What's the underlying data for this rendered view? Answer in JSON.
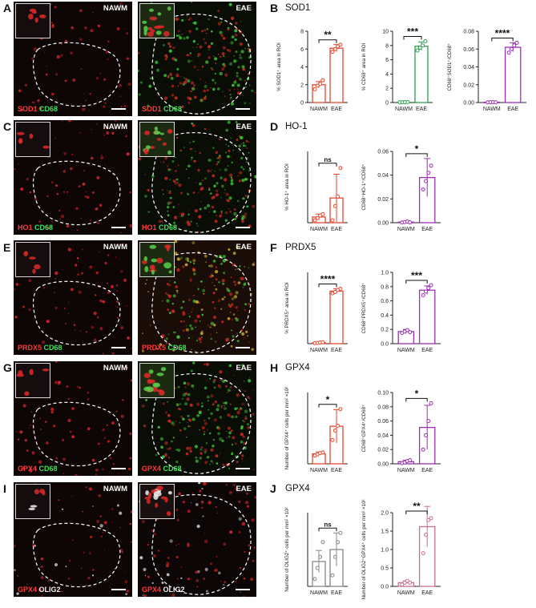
{
  "letters": [
    "A",
    "B",
    "C",
    "D",
    "E",
    "F",
    "G",
    "H",
    "I",
    "J"
  ],
  "section_titles": {
    "B": "SOD1",
    "D": "HO-1",
    "F": "PRDX5",
    "H": "GPX4",
    "J": "GPX4"
  },
  "micrographs": {
    "A": {
      "left_tag": "NAWM",
      "right_tag": "EAE",
      "red": "SOD1",
      "second": "CD68",
      "second_color": "#3fe05a"
    },
    "C": {
      "left_tag": "NAWM",
      "right_tag": "EAE",
      "red": "HO1",
      "second": "CD68",
      "second_color": "#3fe05a"
    },
    "E": {
      "left_tag": "NAWM",
      "right_tag": "EAE",
      "red": "PRDX5",
      "second": "CD68",
      "second_color": "#3fe05a"
    },
    "G": {
      "left_tag": "NAWM",
      "right_tag": "EAE",
      "red": "GPX4",
      "second": "CD68",
      "second_color": "#3fe05a"
    },
    "I": {
      "left_tag": "NAWM",
      "right_tag": "EAE",
      "red": "GPX4",
      "second": "OLIG2",
      "second_color": "#f0f0f0"
    }
  },
  "chart_data": [
    {
      "id": "B1",
      "type": "bar",
      "categories": [
        "NAWM",
        "EAE"
      ],
      "values": [
        2.0,
        6.1
      ],
      "errors": [
        0.35,
        0.4
      ],
      "points": [
        [
          1.5,
          1.9,
          2.1,
          2.5
        ],
        [
          5.7,
          6.0,
          6.3,
          6.5
        ]
      ],
      "ylabel": "% SOD1⁺ area in ROI",
      "ylim": [
        0,
        8
      ],
      "ticks": [
        "0",
        "2",
        "4",
        "6",
        "8"
      ],
      "sig": "**",
      "color": "#e8462e"
    },
    {
      "id": "B2",
      "type": "bar",
      "categories": [
        "NAWM",
        "EAE"
      ],
      "values": [
        0.05,
        7.9
      ],
      "errors": [
        0.03,
        0.6
      ],
      "points": [
        [
          0.03,
          0.04,
          0.05,
          0.06
        ],
        [
          7.3,
          7.7,
          8.0,
          8.6
        ]
      ],
      "ylabel": "% CD68⁺ area in ROI",
      "ylim": [
        0,
        10
      ],
      "ticks": [
        "0",
        "2",
        "4",
        "6",
        "8",
        "10"
      ],
      "sig": "***",
      "color": "#2e9e4f"
    },
    {
      "id": "B3",
      "type": "bar",
      "categories": [
        "NAWM",
        "EAE"
      ],
      "values": [
        0.0003,
        0.062
      ],
      "errors": [
        0.0002,
        0.005
      ],
      "points": [
        [
          0.0002,
          0.0003,
          0.0004,
          0.0002
        ],
        [
          0.056,
          0.06,
          0.064,
          0.067
        ]
      ],
      "ylabel": "CD68⁺SOD1⁺/CD68⁺",
      "ylim": [
        0,
        0.08
      ],
      "ticks": [
        "0.00",
        "0.02",
        "0.04",
        "0.06",
        "0.08"
      ],
      "sig": "****",
      "color": "#9b30b5"
    },
    {
      "id": "D1",
      "type": "bar",
      "categories": [
        "NAWM",
        "EAE"
      ],
      "values": [
        0.12,
        0.52
      ],
      "errors": [
        0.06,
        0.5
      ],
      "points": [
        [
          0.05,
          0.1,
          0.15,
          0.18
        ],
        [
          0.05,
          0.35,
          0.55,
          1.15
        ]
      ],
      "ylabel": "% HO-1⁺ area in ROI",
      "ylim": [
        0,
        1.5
      ],
      "ticks": [],
      "sig": "ns",
      "color": "#e8462e"
    },
    {
      "id": "D2",
      "type": "bar",
      "categories": [
        "NAWM",
        "EAE"
      ],
      "values": [
        0.0005,
        0.038
      ],
      "errors": [
        0.0004,
        0.016
      ],
      "points": [
        [
          0.0002,
          0.0005,
          0.001,
          0.0003
        ],
        [
          0.028,
          0.035,
          0.042,
          0.048
        ]
      ],
      "ylabel": "CD68⁺HO-1⁺/CD68⁺",
      "ylim": [
        0,
        0.06
      ],
      "ticks": [
        "0.00",
        "0.02",
        "0.04",
        "0.06"
      ],
      "sig": "*",
      "color": "#9b30b5"
    },
    {
      "id": "F1",
      "type": "bar",
      "categories": [
        "NAWM",
        "EAE"
      ],
      "values": [
        0.4,
        22.1
      ],
      "errors": [
        0.2,
        1.0
      ],
      "points": [
        [
          0.2,
          0.3,
          0.5,
          0.6
        ],
        [
          21.2,
          21.8,
          22.6,
          23.1
        ]
      ],
      "ylabel": "% PRDX5⁺ area in ROI",
      "ylim": [
        0,
        30
      ],
      "ticks": [],
      "sig": "****",
      "color": "#e8462e"
    },
    {
      "id": "F2",
      "type": "bar",
      "categories": [
        "NAWM",
        "EAE"
      ],
      "values": [
        0.17,
        0.75
      ],
      "errors": [
        0.03,
        0.06
      ],
      "points": [
        [
          0.15,
          0.17,
          0.19,
          0.16
        ],
        [
          0.68,
          0.73,
          0.78,
          0.82
        ]
      ],
      "ylabel": "CD68⁺PRDX5⁺/CD68⁺",
      "ylim": [
        0,
        1.0
      ],
      "ticks": [
        "0.0",
        "0.2",
        "0.4",
        "0.6",
        "0.8",
        "1.0"
      ],
      "sig": "***",
      "color": "#9b30b5"
    },
    {
      "id": "H1",
      "type": "bar",
      "categories": [
        "NAWM",
        "EAE"
      ],
      "values": [
        4.2,
        15.8
      ],
      "errors": [
        0.8,
        7.0
      ],
      "points": [
        [
          3.5,
          4.0,
          4.5,
          4.8
        ],
        [
          10.0,
          14.0,
          16.0,
          23.0
        ]
      ],
      "ylabel": "Number of GPX4⁺ cells per mm² ×10²",
      "ylim": [
        0,
        30
      ],
      "ticks": [],
      "sig": "*",
      "color": "#e8462e"
    },
    {
      "id": "H2",
      "type": "bar",
      "categories": [
        "NAWM",
        "EAE"
      ],
      "values": [
        0.003,
        0.051
      ],
      "errors": [
        0.002,
        0.031
      ],
      "points": [
        [
          0.001,
          0.002,
          0.004,
          0.005
        ],
        [
          0.02,
          0.04,
          0.06,
          0.085
        ]
      ],
      "ylabel": "CD68⁺GPX4⁺/CD68⁺",
      "ylim": [
        0,
        0.1
      ],
      "ticks": [
        "0.00",
        "0.02",
        "0.04",
        "0.06",
        "0.08",
        "0.10"
      ],
      "sig": "*",
      "color": "#9b30b5"
    },
    {
      "id": "J1",
      "type": "bar",
      "categories": [
        "NAWM",
        "EAE"
      ],
      "values": [
        1.35,
        2.0
      ],
      "errors": [
        0.6,
        0.9
      ],
      "points": [
        [
          0.4,
          1.0,
          1.6,
          2.4
        ],
        [
          0.6,
          1.6,
          2.4,
          2.9
        ]
      ],
      "ylabel": "Number of OLIG2⁺ cells per mm² ×10²",
      "ylim": [
        0,
        4
      ],
      "ticks": [],
      "sig": "ns",
      "color": "#888888"
    },
    {
      "id": "J2",
      "type": "bar",
      "categories": [
        "NAWM",
        "EAE"
      ],
      "values": [
        0.1,
        1.62
      ],
      "errors": [
        0.05,
        0.55
      ],
      "points": [
        [
          0.05,
          0.1,
          0.15,
          0.1
        ],
        [
          0.9,
          1.4,
          1.8,
          1.85
        ]
      ],
      "ylabel": "Number of OLIG2⁺GPX4⁺ cells per mm² ×10²",
      "ylim": [
        0,
        2.0
      ],
      "ticks": [
        "0.0",
        "0.5",
        "1.0",
        "1.5",
        "2.0"
      ],
      "sig": "**",
      "color": "#c8708f"
    }
  ]
}
